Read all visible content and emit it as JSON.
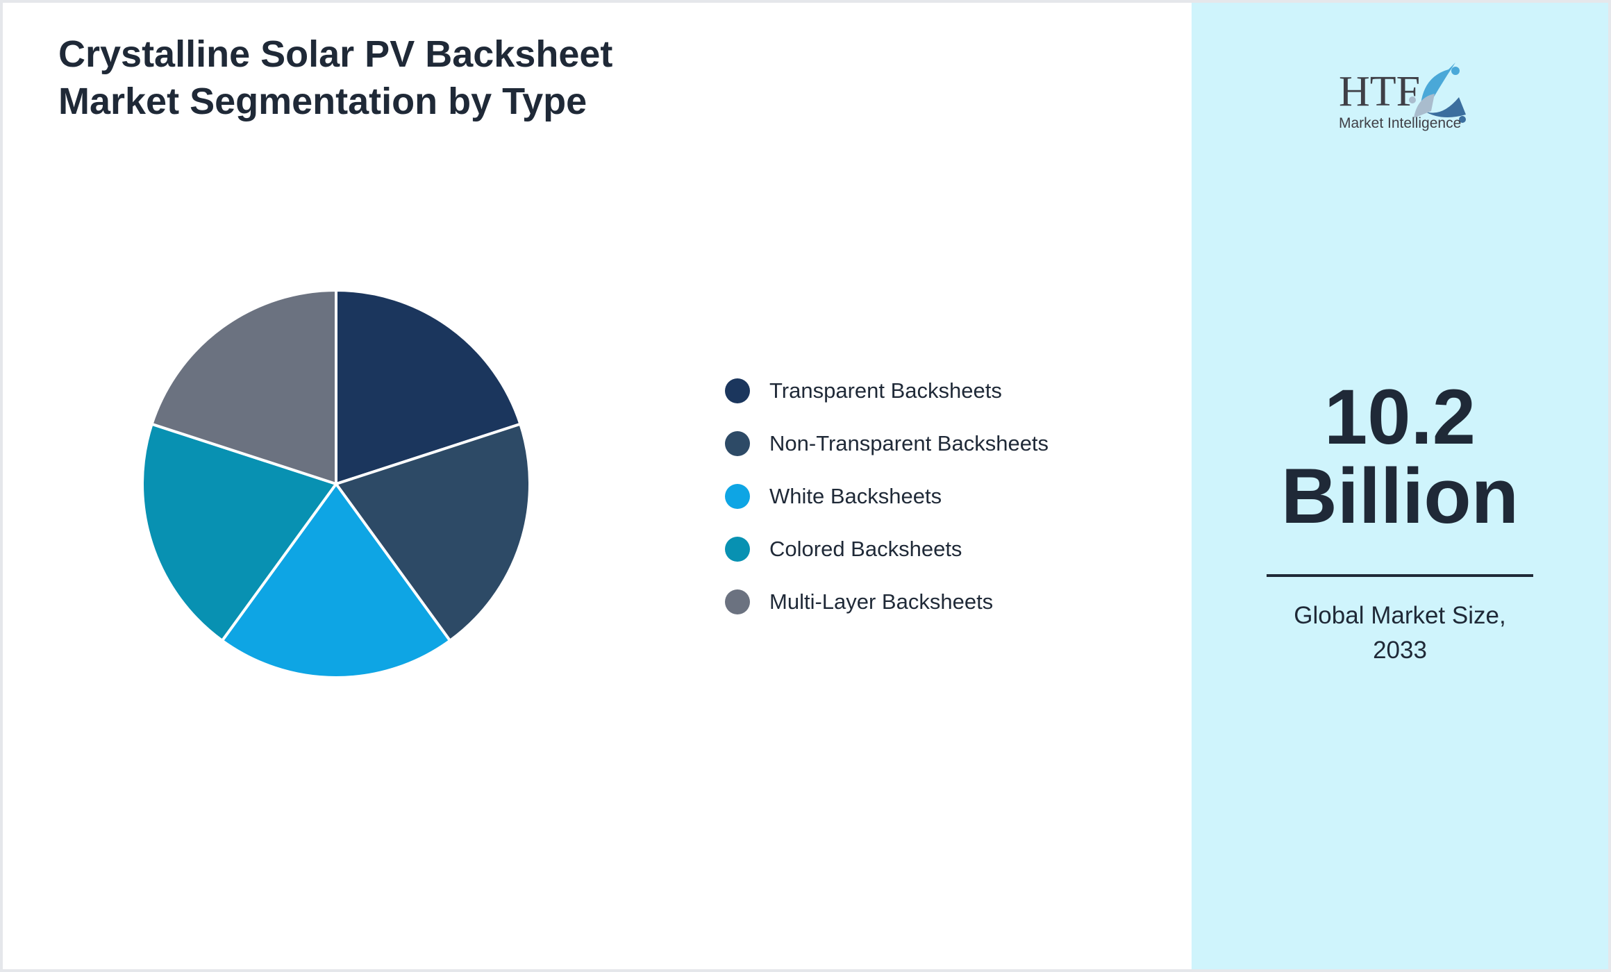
{
  "title_line1": "Crystalline Solar PV Backsheet",
  "title_line2": "Market Segmentation by Type",
  "chart_data": {
    "type": "pie",
    "title": "Crystalline Solar PV Backsheet Market Segmentation by Type",
    "categories": [
      "Transparent Backsheets",
      "Non-Transparent Backsheets",
      "White Backsheets",
      "Colored Backsheets",
      "Multi-Layer Backsheets"
    ],
    "values": [
      20,
      20,
      20,
      20,
      20
    ],
    "colors": [
      "#1b365d",
      "#2d4a66",
      "#0ea5e4",
      "#0891b2",
      "#6b7280"
    ],
    "legend_position": "right"
  },
  "side": {
    "logo_text": "HTF",
    "logo_subtext": "Market Intelligence",
    "value_line1": "10.2",
    "value_line2": "Billion",
    "caption_line1": "Global Market Size,",
    "caption_line2": "2033"
  }
}
